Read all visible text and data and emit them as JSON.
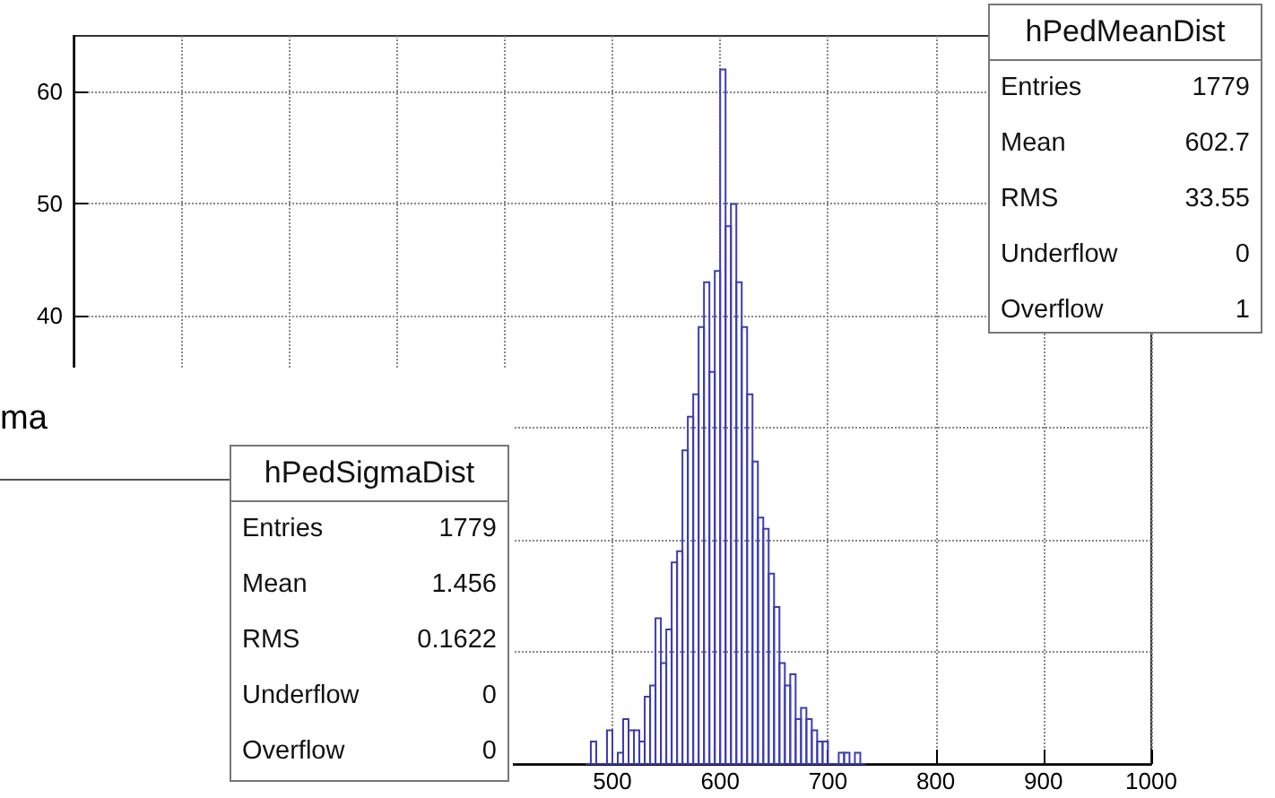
{
  "chart_data": [
    {
      "type": "histogram",
      "color": "#3c3cb4",
      "bins": [
        475,
        480,
        485,
        490,
        495,
        500,
        505,
        510,
        515,
        520,
        525,
        530,
        535,
        540,
        545,
        550,
        555,
        560,
        565,
        570,
        575,
        580,
        585,
        590,
        595,
        600,
        605,
        610,
        615,
        620,
        625,
        630,
        635,
        640,
        645,
        650,
        655,
        660,
        665,
        670,
        675,
        680,
        685,
        690,
        695,
        700,
        705,
        710,
        715,
        720,
        725,
        730,
        735
      ],
      "values": [
        0,
        2,
        0,
        0,
        3,
        0,
        1,
        4,
        3,
        3,
        2,
        6,
        7,
        13,
        9,
        12,
        18,
        19,
        28,
        31,
        33,
        39,
        43,
        35,
        44,
        62,
        48,
        50,
        43,
        39,
        33,
        27,
        22,
        21,
        17,
        14,
        9,
        7,
        8,
        4,
        5,
        4,
        3,
        2,
        2,
        0,
        0,
        1,
        1,
        0,
        1,
        0
      ],
      "xlim": [
        0,
        1000
      ],
      "xticks": [
        {
          "value": 0,
          "label": null
        },
        {
          "value": 100,
          "label": null
        },
        {
          "value": 200,
          "label": null
        },
        {
          "value": 300,
          "label": null
        },
        {
          "value": 400,
          "label": null
        },
        500,
        600,
        700,
        800,
        900,
        1000
      ],
      "ylim": [
        0,
        65
      ],
      "yticks": [
        {
          "value": 0,
          "label": null
        },
        {
          "value": 10,
          "label": null
        },
        {
          "value": 20,
          "label": null
        },
        {
          "value": 30,
          "label": null
        },
        40,
        50,
        60
      ],
      "grid": true,
      "annotations": [
        "hPedMeanDist",
        "Entries",
        "1779",
        "Mean",
        "602.7",
        "RMS",
        "33.55",
        "Underflow",
        "0",
        "Overflow",
        "1"
      ]
    },
    {
      "type": "other",
      "title": "ma",
      "annotations": [
        "hPedSigmaDist",
        "Entries",
        "1779",
        "Mean",
        "1.456",
        "RMS",
        "0.1622",
        "Underflow",
        "0",
        "Overflow",
        "0"
      ]
    }
  ]
}
